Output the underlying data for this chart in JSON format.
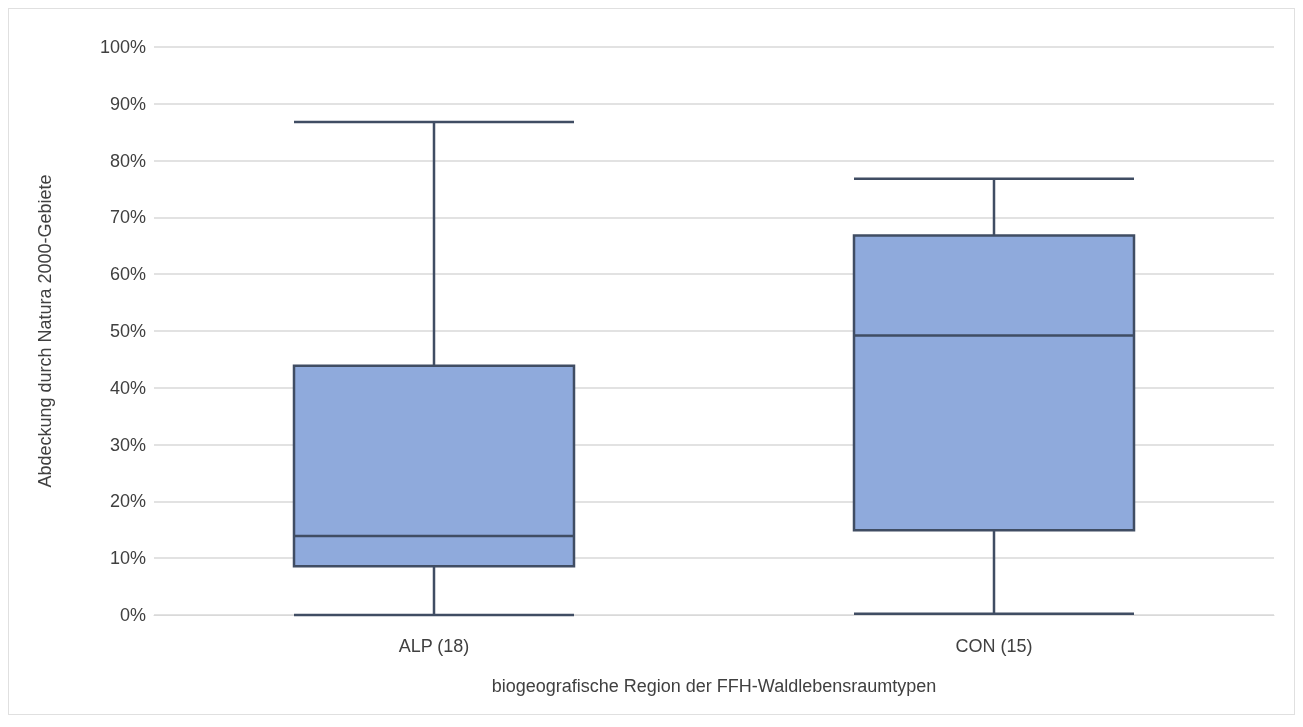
{
  "chart_data": {
    "type": "box",
    "xlabel": "biogeografische Region der FFH-Waldlebensraumtypen",
    "ylabel": "Abdeckung durch Natura 2000-Gebiete",
    "categories": [
      "ALP (18)",
      "CON (15)"
    ],
    "series": [
      {
        "color": "#8faadc",
        "boxes": [
          {
            "low": 0,
            "q1": 8.6,
            "median": 13.9,
            "q3": 43.9,
            "high": 86.8
          },
          {
            "low": 0.2,
            "q1": 14.9,
            "median": 49.2,
            "q3": 66.8,
            "high": 76.8
          }
        ]
      }
    ],
    "ylim": [
      0,
      100
    ],
    "yticks": [
      {
        "value": 0,
        "label": "0%"
      },
      {
        "value": 10,
        "label": "10%"
      },
      {
        "value": 20,
        "label": "20%"
      },
      {
        "value": 30,
        "label": "30%"
      },
      {
        "value": 40,
        "label": "40%"
      },
      {
        "value": 50,
        "label": "50%"
      },
      {
        "value": 60,
        "label": "60%"
      },
      {
        "value": 70,
        "label": "70%"
      },
      {
        "value": 80,
        "label": "80%"
      },
      {
        "value": 90,
        "label": "90%"
      },
      {
        "value": 100,
        "label": "100%"
      }
    ],
    "grid": "y"
  }
}
